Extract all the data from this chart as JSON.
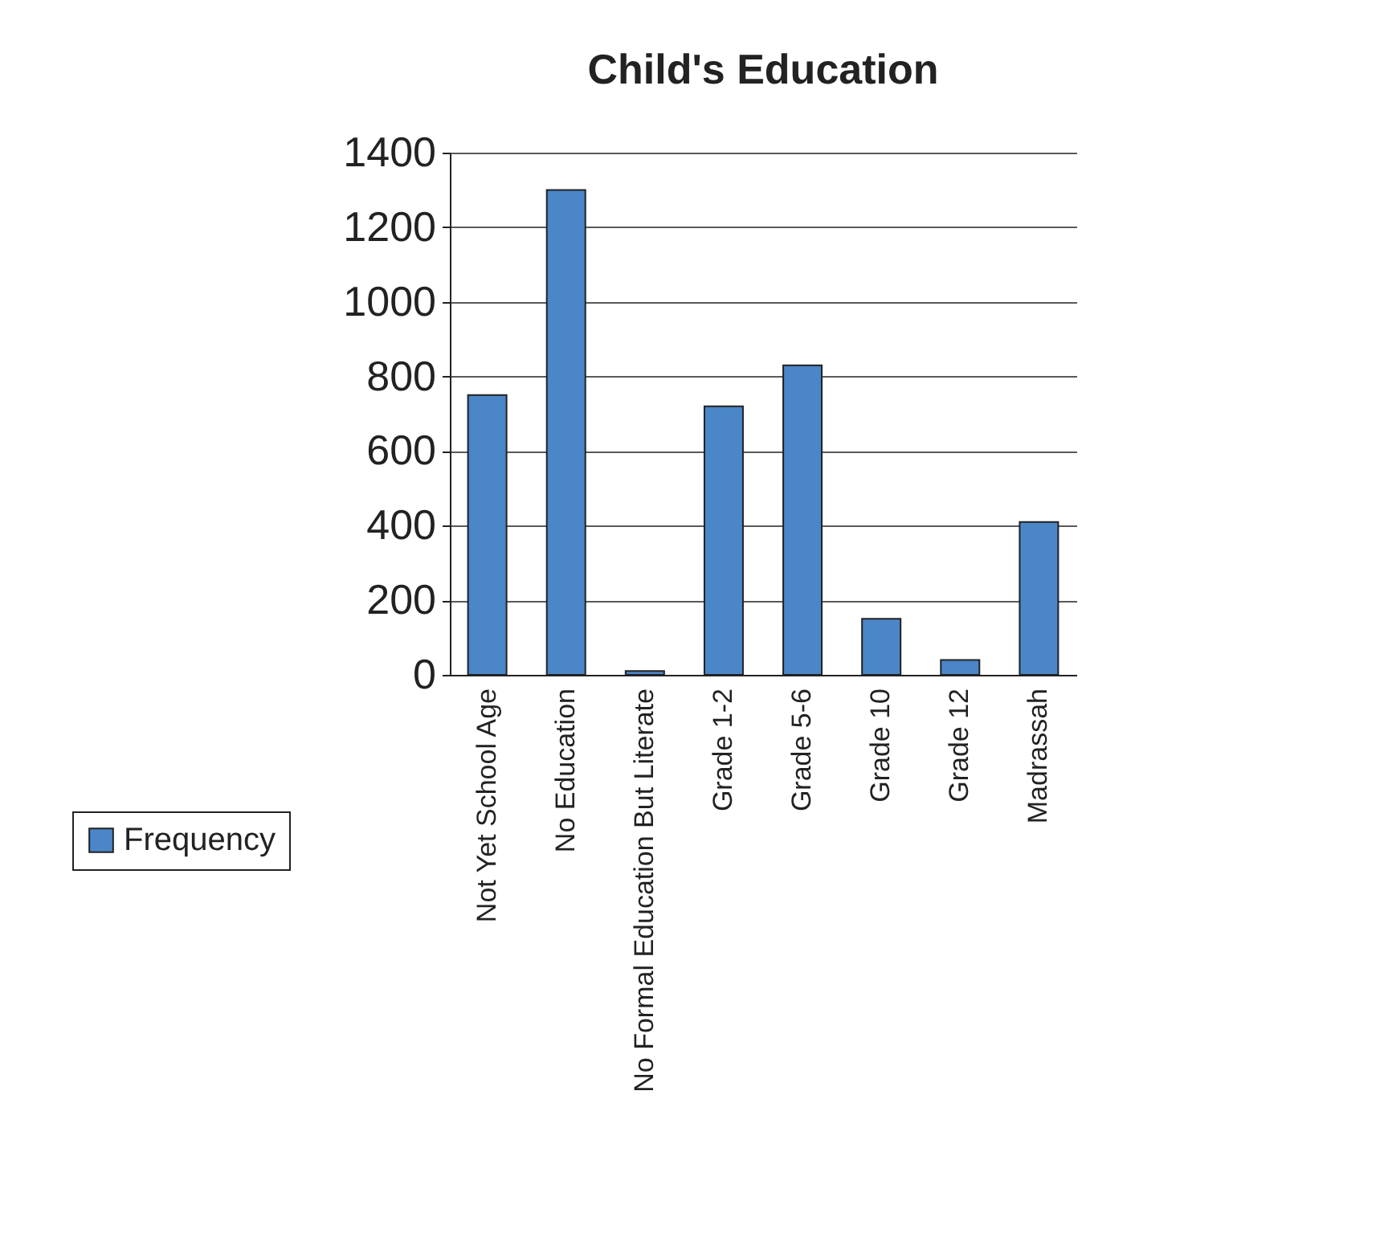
{
  "chart_data": {
    "type": "bar",
    "title": "Child's Education",
    "categories": [
      "Not Yet School Age",
      "No Education",
      "No Formal Education But Literate",
      "Grade 1-2",
      "Grade 5-6",
      "Grade 10",
      "Grade 12",
      "Madrassah"
    ],
    "series": [
      {
        "name": "Frequency",
        "color": "#4a86c8",
        "values": [
          750,
          1300,
          10,
          720,
          830,
          150,
          40,
          410
        ]
      }
    ],
    "ylim": [
      0,
      1400
    ],
    "yticks": [
      0,
      200,
      400,
      600,
      800,
      1000,
      1200,
      1400
    ],
    "grid": "y",
    "legend": "left"
  }
}
